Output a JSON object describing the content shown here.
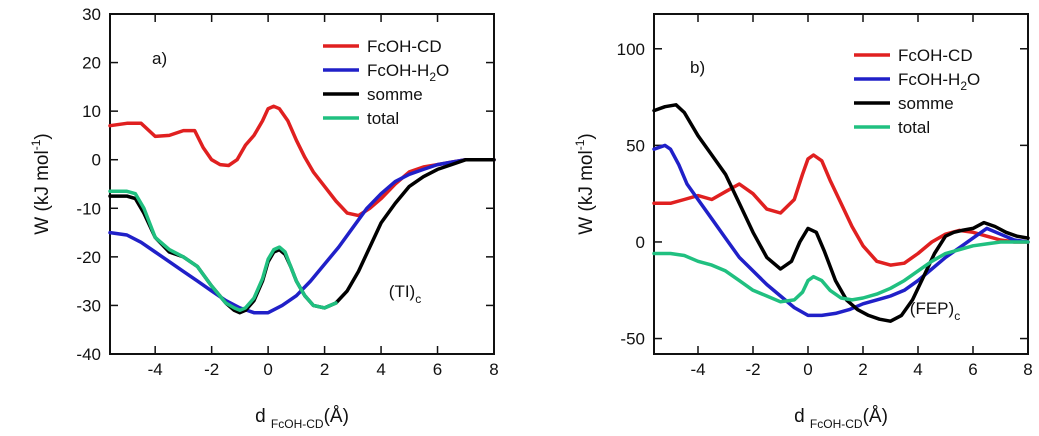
{
  "chart_data": [
    {
      "type": "line",
      "panel": "a)",
      "annotation": "(TI)",
      "annotation_sub": "c",
      "xlabel": "d",
      "xlabel_sub": "FcOH-CD",
      "xlabel_unit": "(Å)",
      "ylabel": "W (kJ mol",
      "ylabel_sup": "-1",
      "ylabel_end": ")",
      "xlim": [
        -5.6,
        8
      ],
      "ylim": [
        -40,
        30
      ],
      "xticks": [
        -4,
        -2,
        0,
        2,
        4,
        6,
        8
      ],
      "yticks": [
        -40,
        -30,
        -20,
        -10,
        0,
        10,
        20,
        30
      ],
      "grid": false,
      "legend_position": "top-right",
      "series": [
        {
          "name": "FcOH-CD",
          "color": "#e02020",
          "x": [
            -5.6,
            -5,
            -4.5,
            -4,
            -3.5,
            -3,
            -2.6,
            -2.3,
            -2,
            -1.7,
            -1.4,
            -1.1,
            -0.8,
            -0.5,
            -0.2,
            0,
            0.2,
            0.4,
            0.7,
            1,
            1.3,
            1.6,
            2,
            2.4,
            2.8,
            3.2,
            3.6,
            4,
            4.5,
            5,
            5.5,
            6,
            6.5,
            7,
            7.5,
            8
          ],
          "y": [
            7,
            7.5,
            7.5,
            4.8,
            5,
            6,
            6,
            2.5,
            0,
            -1,
            -1.2,
            0,
            3,
            5,
            8,
            10.5,
            11,
            10.5,
            8,
            4,
            0.5,
            -2.5,
            -5.5,
            -8.5,
            -11,
            -11.5,
            -10,
            -8,
            -5,
            -2.5,
            -1.5,
            -1,
            -0.5,
            0,
            0,
            0
          ]
        },
        {
          "name": "FcOH-H₂O",
          "color": "#2020c8",
          "x": [
            -5.6,
            -5,
            -4.5,
            -4,
            -3.5,
            -3,
            -2.5,
            -2,
            -1.5,
            -1,
            -0.5,
            0,
            0.5,
            1,
            1.5,
            2,
            2.5,
            3,
            3.5,
            4,
            4.5,
            5,
            5.5,
            6,
            6.5,
            7,
            7.5,
            8
          ],
          "y": [
            -15,
            -15.5,
            -17,
            -19,
            -21,
            -23,
            -25,
            -27,
            -29,
            -30.5,
            -31.5,
            -31.5,
            -30,
            -28,
            -25,
            -21.5,
            -18,
            -14,
            -10,
            -7,
            -4.5,
            -3,
            -2,
            -1,
            -0.5,
            0,
            0,
            0
          ]
        },
        {
          "name": "somme",
          "color": "#000000",
          "x": [
            -5.6,
            -5,
            -4.7,
            -4.4,
            -4,
            -3.5,
            -3,
            -2.5,
            -2,
            -1.5,
            -1.2,
            -1,
            -0.8,
            -0.5,
            -0.2,
            0,
            0.2,
            0.4,
            0.6,
            0.8,
            1,
            1.3,
            1.6,
            2,
            2.4,
            2.8,
            3.2,
            3.6,
            4,
            4.5,
            5,
            5.5,
            6,
            6.5,
            7,
            7.5,
            8
          ],
          "y": [
            -7.5,
            -7.5,
            -8,
            -11,
            -16,
            -19,
            -20,
            -22,
            -26,
            -29.5,
            -31,
            -31.5,
            -31,
            -29,
            -25,
            -21,
            -19,
            -18.5,
            -19.5,
            -22,
            -25,
            -28,
            -30,
            -30.5,
            -29.5,
            -27,
            -23,
            -18,
            -13,
            -9,
            -5.5,
            -3.5,
            -2,
            -1,
            0,
            0,
            0
          ]
        },
        {
          "name": "total",
          "color": "#20c080",
          "x": [
            -5.6,
            -5,
            -4.7,
            -4.4,
            -4,
            -3.5,
            -3,
            -2.5,
            -2,
            -1.5,
            -1.2,
            -1,
            -0.8,
            -0.5,
            -0.2,
            0,
            0.2,
            0.4,
            0.6,
            0.8,
            1,
            1.3,
            1.6,
            2,
            2.4
          ],
          "y": [
            -6.5,
            -6.5,
            -7,
            -10,
            -16,
            -18.5,
            -20,
            -22,
            -26,
            -29.5,
            -30.5,
            -31,
            -30.5,
            -28.5,
            -24.5,
            -20.5,
            -18.5,
            -18,
            -19,
            -22,
            -25,
            -28,
            -30,
            -30.5,
            -29.5
          ]
        }
      ]
    },
    {
      "type": "line",
      "panel": "b)",
      "annotation": "(FEP)",
      "annotation_sub": "c",
      "xlabel": "d",
      "xlabel_sub": "FcOH-CD",
      "xlabel_unit": "(Å)",
      "ylabel": "W (kJ mol",
      "ylabel_sup": "-1",
      "ylabel_end": ")",
      "xlim": [
        -5.6,
        8
      ],
      "ylim": [
        -58,
        118
      ],
      "xticks": [
        -4,
        -2,
        0,
        2,
        4,
        6,
        8
      ],
      "yticks": [
        -50,
        0,
        50,
        100
      ],
      "grid": false,
      "legend_position": "top-right",
      "series": [
        {
          "name": "FcOH-CD",
          "color": "#e02020",
          "x": [
            -5.6,
            -5,
            -4.5,
            -4,
            -3.5,
            -3,
            -2.5,
            -2,
            -1.5,
            -1,
            -0.5,
            -0.2,
            0,
            0.2,
            0.5,
            0.8,
            1.2,
            1.6,
            2,
            2.5,
            3,
            3.5,
            4,
            4.5,
            5,
            5.5,
            6,
            6.5,
            7,
            7.5,
            8
          ],
          "y": [
            20,
            20,
            22,
            24,
            22,
            26,
            30,
            25,
            17,
            15,
            22,
            35,
            43,
            45,
            42,
            32,
            20,
            8,
            -2,
            -10,
            -12,
            -11,
            -6,
            0,
            4,
            6,
            5,
            3,
            1,
            0,
            0
          ]
        },
        {
          "name": "FcOH-H₂O",
          "color": "#2020c8",
          "x": [
            -5.6,
            -5.2,
            -5,
            -4.7,
            -4.4,
            -4,
            -3.5,
            -3,
            -2.5,
            -2,
            -1.5,
            -1,
            -0.5,
            0,
            0.5,
            1,
            1.5,
            2,
            2.5,
            3,
            3.5,
            4,
            4.5,
            5,
            5.5,
            6,
            6.5,
            7,
            7.5,
            8
          ],
          "y": [
            48,
            50,
            48,
            40,
            30,
            22,
            12,
            2,
            -8,
            -15,
            -22,
            -28,
            -34,
            -38,
            -38,
            -37,
            -35,
            -32,
            -30,
            -28,
            -25,
            -20,
            -14,
            -8,
            -3,
            2,
            7,
            4,
            1,
            0
          ]
        },
        {
          "name": "somme",
          "color": "#000000",
          "x": [
            -5.6,
            -5.2,
            -4.8,
            -4.5,
            -4,
            -3.5,
            -3,
            -2.5,
            -2,
            -1.5,
            -1,
            -0.6,
            -0.3,
            0,
            0.3,
            0.6,
            1,
            1.4,
            1.8,
            2.2,
            2.6,
            3,
            3.4,
            3.8,
            4.2,
            4.6,
            5,
            5.3,
            5.6,
            6,
            6.4,
            6.8,
            7.2,
            7.6,
            8
          ],
          "y": [
            68,
            70,
            71,
            67,
            55,
            45,
            35,
            20,
            5,
            -8,
            -14,
            -10,
            0,
            7,
            5,
            -5,
            -20,
            -30,
            -35,
            -38,
            -40,
            -41,
            -38,
            -30,
            -18,
            -6,
            3,
            5,
            6,
            7,
            10,
            8,
            5,
            3,
            2
          ]
        },
        {
          "name": "total",
          "color": "#20c080",
          "x": [
            -5.6,
            -5,
            -4.5,
            -4,
            -3.5,
            -3,
            -2.5,
            -2,
            -1.5,
            -1,
            -0.5,
            -0.2,
            0,
            0.2,
            0.5,
            0.8,
            1.2,
            1.6,
            2,
            2.5,
            3,
            3.5,
            4,
            4.5,
            5,
            5.5,
            6,
            6.5,
            7,
            7.5,
            8
          ],
          "y": [
            -6,
            -6,
            -7,
            -10,
            -12,
            -15,
            -20,
            -25,
            -28,
            -31,
            -30,
            -26,
            -20,
            -18,
            -20,
            -25,
            -29,
            -30,
            -29,
            -27,
            -24,
            -20,
            -15,
            -10,
            -6,
            -4,
            -2,
            -1,
            0,
            0,
            0
          ]
        }
      ]
    }
  ]
}
